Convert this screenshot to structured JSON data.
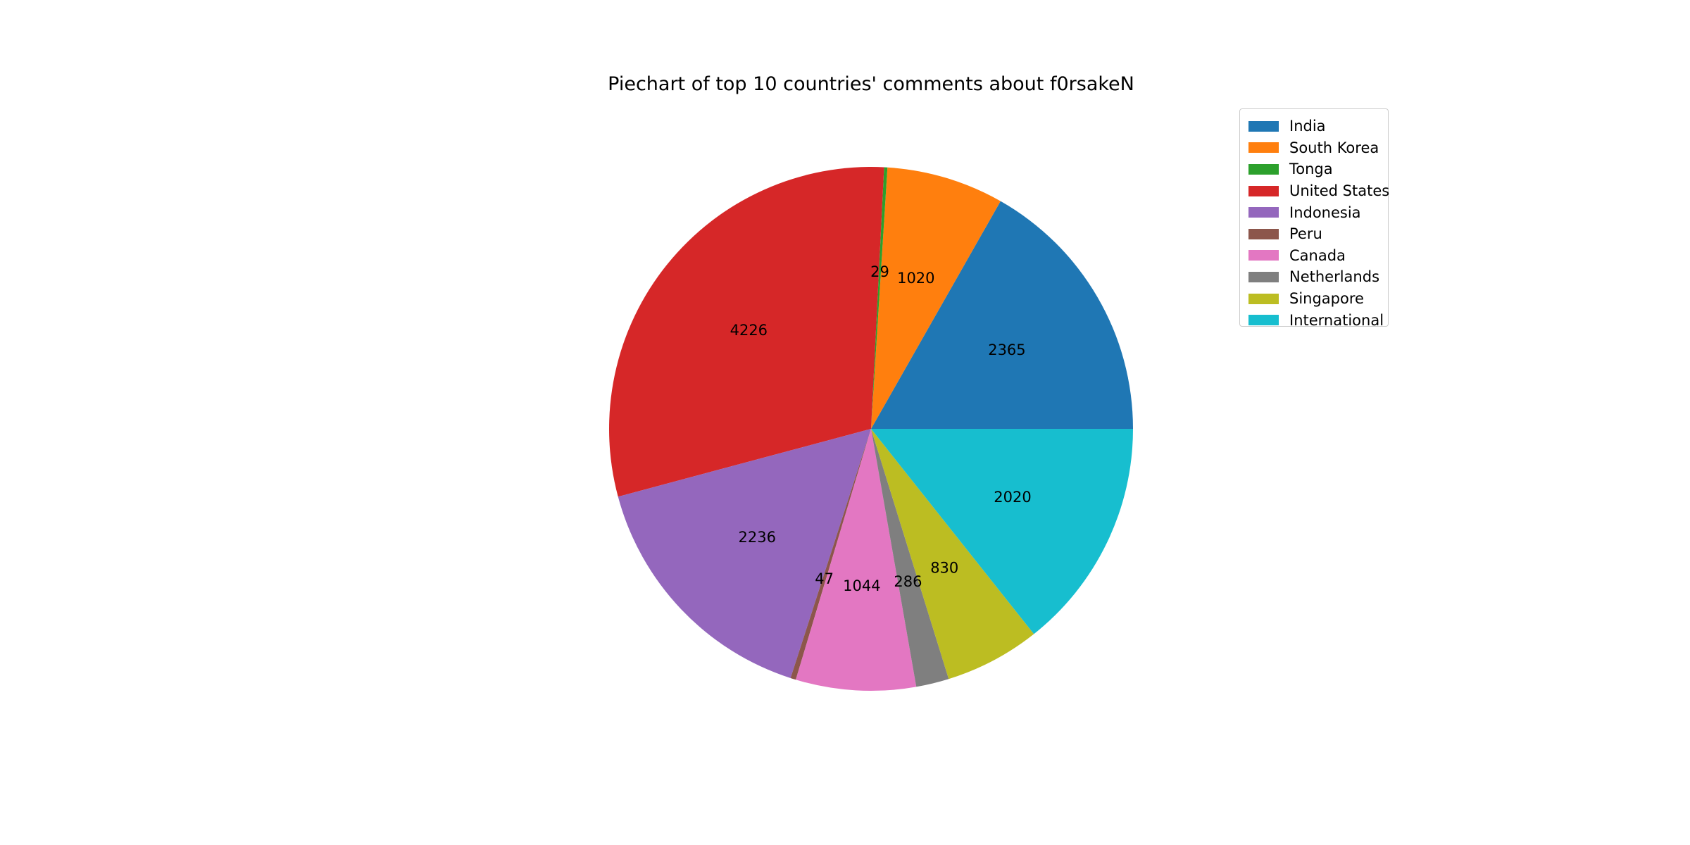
{
  "chart_data": {
    "type": "pie",
    "title": "Piechart of top 10 countries' comments about f0rsakeN",
    "categories": [
      "India",
      "South Korea",
      "Tonga",
      "United States",
      "Indonesia",
      "Peru",
      "Canada",
      "Netherlands",
      "Singapore",
      "International"
    ],
    "values": [
      2365,
      1020,
      29,
      4226,
      2236,
      47,
      1044,
      286,
      830,
      2020
    ],
    "colors": [
      "#1f77b4",
      "#ff7f0e",
      "#2ca02c",
      "#d62728",
      "#9467bd",
      "#8c564b",
      "#e377c2",
      "#7f7f7f",
      "#bcbd22",
      "#17becf"
    ],
    "start_angle_deg": 0,
    "direction": "counterclockwise",
    "legend_position": "upper-right"
  }
}
